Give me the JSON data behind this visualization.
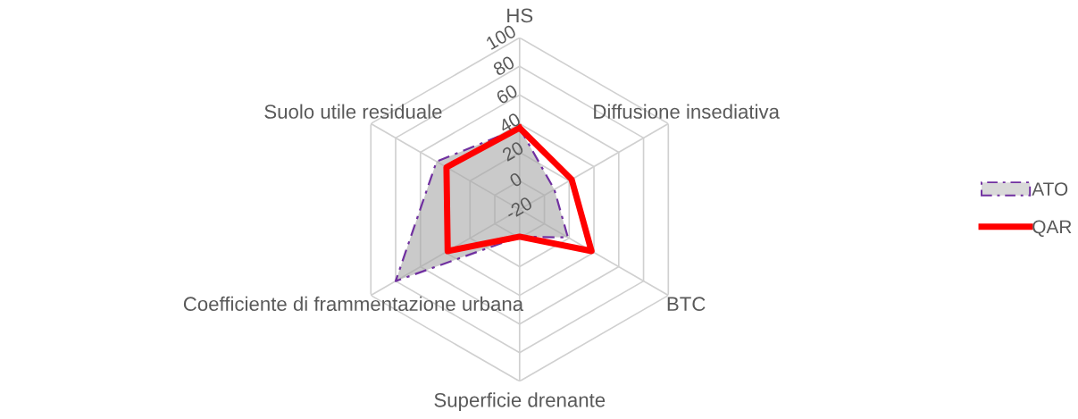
{
  "chart_data": {
    "type": "radar",
    "categories": [
      "HS",
      "Diffusione insediativa",
      "BTC",
      "Superficie drenante",
      "Coefficiente di frammentazione urbana",
      "Suolo utile residuale"
    ],
    "series": [
      {
        "name": "ATO",
        "color": "#7030a0",
        "type": "area",
        "line_style": "dashed",
        "values": [
          37,
          8,
          19,
          -1,
          80,
          47
        ]
      },
      {
        "name": "QAR",
        "color": "#ff0000",
        "line_style": "solid",
        "values": [
          37,
          22,
          38,
          -1,
          38,
          39
        ]
      }
    ],
    "ylim": [
      -20,
      100
    ],
    "yticks": [
      -20,
      0,
      20,
      40,
      60,
      80,
      100
    ],
    "grid": true,
    "legend": "right"
  }
}
